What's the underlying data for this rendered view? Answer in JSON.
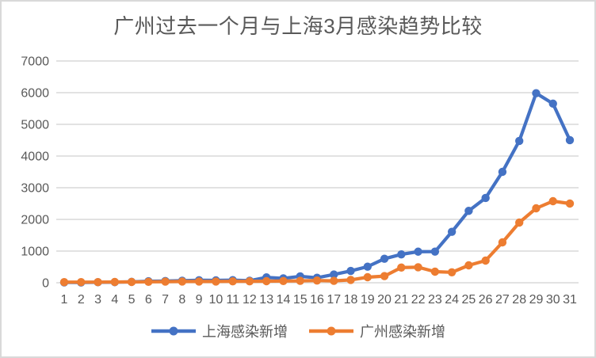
{
  "chart_data": {
    "type": "line",
    "title": "广州过去一个月与上海3月感染趋势比较",
    "x": [
      1,
      2,
      3,
      4,
      5,
      6,
      7,
      8,
      9,
      10,
      11,
      12,
      13,
      14,
      15,
      16,
      17,
      18,
      19,
      20,
      21,
      22,
      23,
      24,
      25,
      26,
      27,
      28,
      29,
      30,
      31
    ],
    "series": [
      {
        "name": "上海感染新增",
        "color": "#4472C4",
        "values": [
          11,
          8,
          16,
          19,
          28,
          48,
          55,
          65,
          80,
          75,
          83,
          65,
          169,
          139,
          202,
          158,
          260,
          374,
          509,
          758,
          896,
          981,
          983,
          1609,
          2269,
          2676,
          3500,
          4477,
          5982,
          5653,
          4502
        ]
      },
      {
        "name": "广州感染新增",
        "color": "#ED7D31",
        "values": [
          20,
          20,
          20,
          25,
          25,
          30,
          35,
          40,
          40,
          40,
          45,
          45,
          50,
          55,
          60,
          70,
          60,
          90,
          175,
          210,
          480,
          490,
          350,
          330,
          550,
          700,
          1275,
          1900,
          2350,
          2575,
          2500
        ]
      }
    ],
    "xlabel": "",
    "ylabel": "",
    "ylim": [
      0,
      7000
    ],
    "ytick_step": 1000,
    "yticks": [
      0,
      1000,
      2000,
      3000,
      4000,
      5000,
      6000,
      7000
    ],
    "grid": true,
    "legend_position": "bottom",
    "marker": "circle"
  },
  "colors": {
    "background": "#ffffff",
    "frame_border": "#d9d9d9",
    "gridline": "#d9d9d9",
    "text": "#595959",
    "title_text": "#595959"
  }
}
